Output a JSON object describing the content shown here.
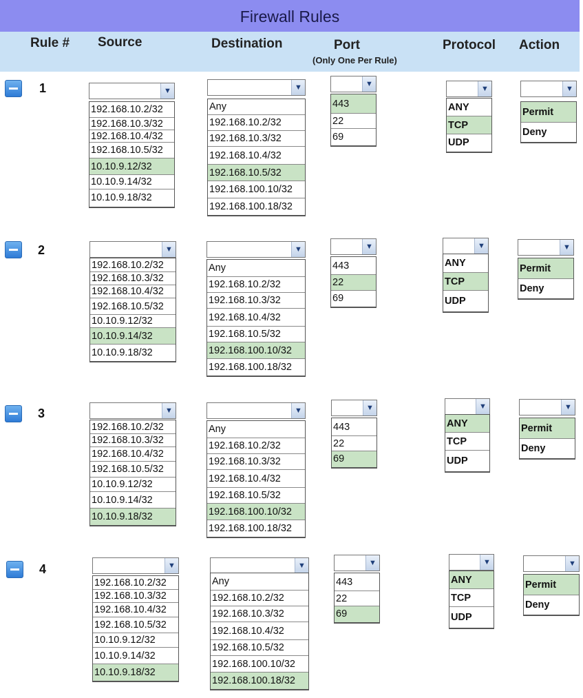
{
  "title": "Firewall Rules",
  "headers": {
    "rule": "Rule #",
    "source": "Source",
    "destination": "Destination",
    "port": "Port",
    "port_note": "(Only One Per Rule)",
    "protocol": "Protocol",
    "action": "Action"
  },
  "icons": {
    "remove": "minus-icon",
    "dropdown_arrow": "chevron-down-icon"
  },
  "colors": {
    "title_bar": "#8c8cf0",
    "header_bar": "#c9e1f5",
    "selected": "#c9e3c5",
    "button": "#2e7bd6"
  },
  "rules": [
    {
      "number": "1",
      "source": {
        "options": [
          "192.168.10.2/32",
          "192.168.10.3/32",
          "192.168.10.4/32",
          "192.168.10.5/32",
          "10.10.9.12/32",
          "10.10.9.14/32",
          "10.10.9.18/32"
        ],
        "selected": "10.10.9.12/32"
      },
      "destination": {
        "options": [
          "Any",
          "192.168.10.2/32",
          "192.168.10.3/32",
          "192.168.10.4/32",
          "192.168.10.5/32",
          "192.168.100.10/32",
          "192.168.100.18/32"
        ],
        "selected": "192.168.10.5/32"
      },
      "port": {
        "options": [
          "443",
          "22",
          "69"
        ],
        "selected": "443"
      },
      "protocol": {
        "options": [
          "ANY",
          "TCP",
          "UDP"
        ],
        "selected": "TCP"
      },
      "action": {
        "options": [
          "Permit",
          "Deny"
        ],
        "selected": "Permit"
      }
    },
    {
      "number": "2",
      "source": {
        "options": [
          "192.168.10.2/32",
          "192.168.10.3/32",
          "192.168.10.4/32",
          "192.168.10.5/32",
          "10.10.9.12/32",
          "10.10.9.14/32",
          "10.10.9.18/32"
        ],
        "selected": "10.10.9.14/32"
      },
      "destination": {
        "options": [
          "Any",
          "192.168.10.2/32",
          "192.168.10.3/32",
          "192.168.10.4/32",
          "192.168.10.5/32",
          "192.168.100.10/32",
          "192.168.100.18/32"
        ],
        "selected": "192.168.100.10/32"
      },
      "port": {
        "options": [
          "443",
          "22",
          "69"
        ],
        "selected": "22"
      },
      "protocol": {
        "options": [
          "ANY",
          "TCP",
          "UDP"
        ],
        "selected": "TCP"
      },
      "action": {
        "options": [
          "Permit",
          "Deny"
        ],
        "selected": "Permit"
      }
    },
    {
      "number": "3",
      "source": {
        "options": [
          "192.168.10.2/32",
          "192.168.10.3/32",
          "192.168.10.4/32",
          "192.168.10.5/32",
          "10.10.9.12/32",
          "10.10.9.14/32",
          "10.10.9.18/32"
        ],
        "selected": "10.10.9.18/32"
      },
      "destination": {
        "options": [
          "Any",
          "192.168.10.2/32",
          "192.168.10.3/32",
          "192.168.10.4/32",
          "192.168.10.5/32",
          "192.168.100.10/32",
          "192.168.100.18/32"
        ],
        "selected": "192.168.100.10/32"
      },
      "port": {
        "options": [
          "443",
          "22",
          "69"
        ],
        "selected": "69"
      },
      "protocol": {
        "options": [
          "ANY",
          "TCP",
          "UDP"
        ],
        "selected": "ANY"
      },
      "action": {
        "options": [
          "Permit",
          "Deny"
        ],
        "selected": "Permit"
      }
    },
    {
      "number": "4",
      "source": {
        "options": [
          "192.168.10.2/32",
          "192.168.10.3/32",
          "192.168.10.4/32",
          "192.168.10.5/32",
          "10.10.9.12/32",
          "10.10.9.14/32",
          "10.10.9.18/32"
        ],
        "selected": "10.10.9.18/32"
      },
      "destination": {
        "options": [
          "Any",
          "192.168.10.2/32",
          "192.168.10.3/32",
          "192.168.10.4/32",
          "192.168.10.5/32",
          "192.168.100.10/32",
          "192.168.100.18/32"
        ],
        "selected": "192.168.100.18/32"
      },
      "port": {
        "options": [
          "443",
          "22",
          "69"
        ],
        "selected": "69"
      },
      "protocol": {
        "options": [
          "ANY",
          "TCP",
          "UDP"
        ],
        "selected": "ANY"
      },
      "action": {
        "options": [
          "Permit",
          "Deny"
        ],
        "selected": "Permit"
      }
    }
  ]
}
